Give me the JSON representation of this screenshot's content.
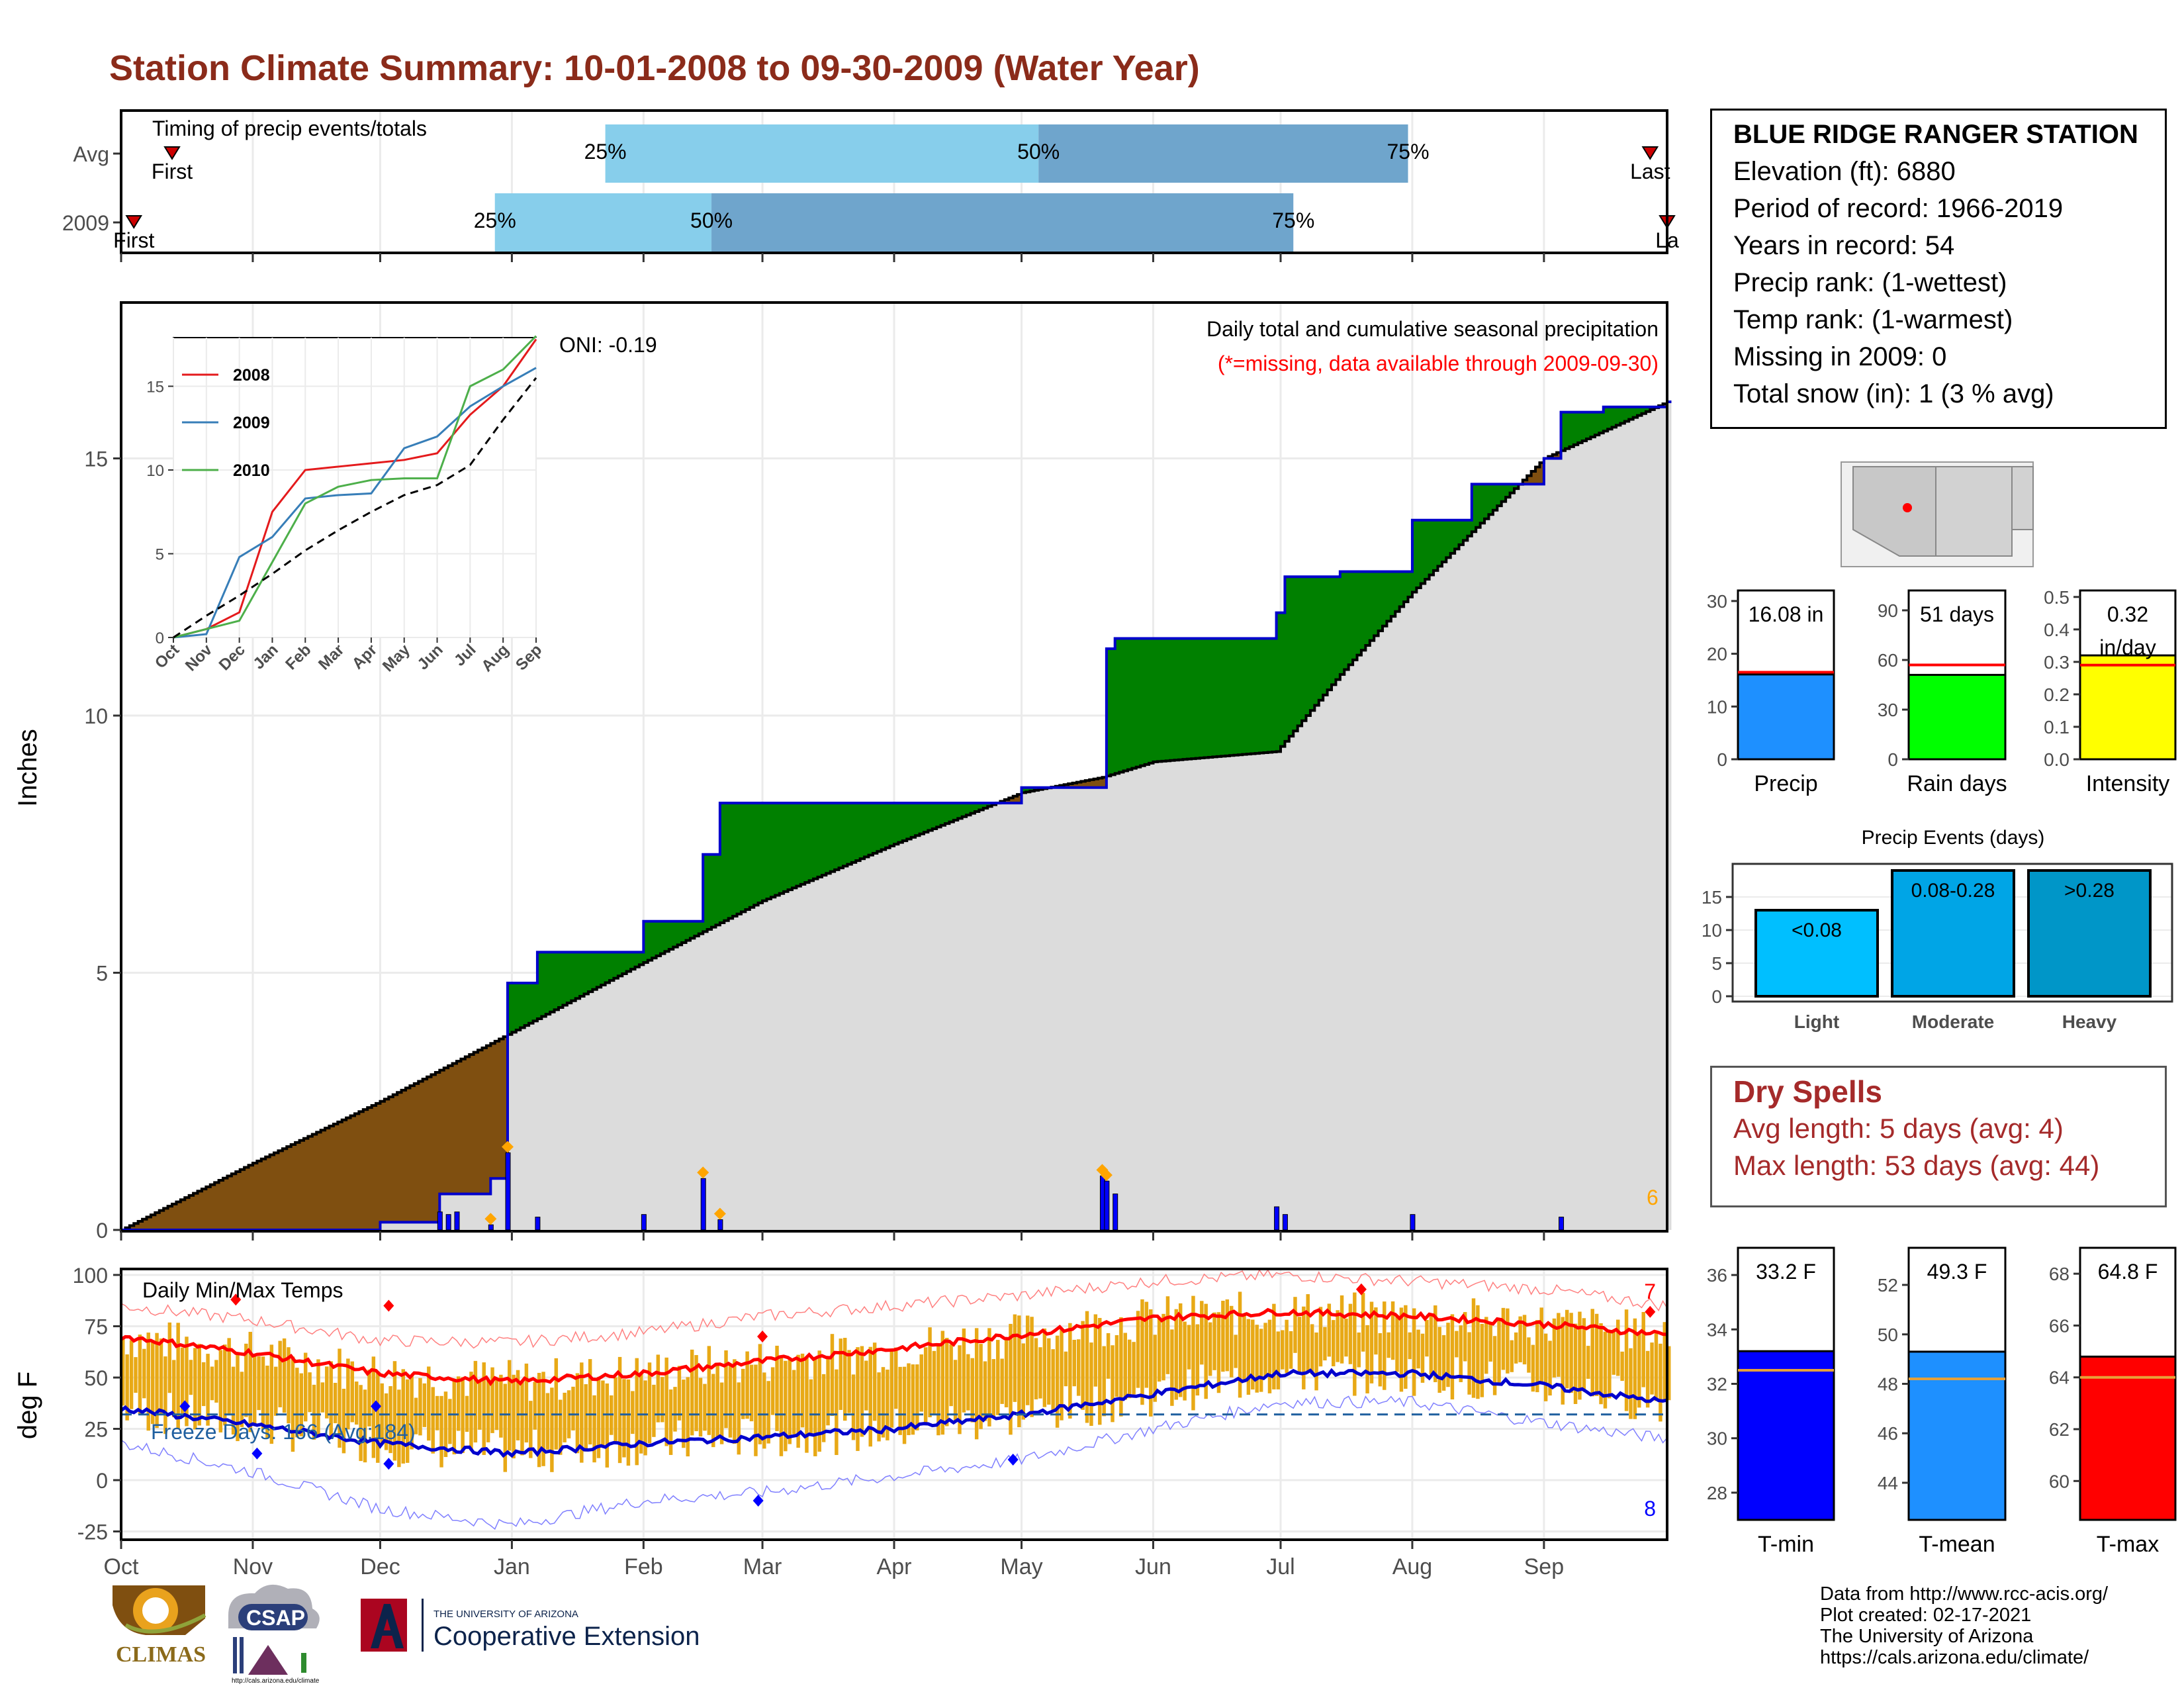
{
  "title": "Station Climate Summary: 10-01-2008 to 09-30-2009 (Water Year)",
  "station": {
    "name": "BLUE RIDGE RANGER STATION",
    "lines": [
      "Elevation (ft): 6880",
      "Period of record: 1966-2019",
      "Years in record: 54",
      "Precip rank:  (1-wettest)",
      "Temp rank:  (1-warmest)",
      "Missing in 2009: 0",
      "Total snow (in): 1 (3 % avg)"
    ]
  },
  "timing": {
    "label": "Timing of precip events/totals",
    "rows": [
      "Avg",
      "2009"
    ],
    "first_label": "First",
    "last_label": "Last",
    "last_label_clipped": "La",
    "avg_percentiles": [
      "25%",
      "50%",
      "75%"
    ],
    "y2009_percentiles": [
      "25%",
      "50%",
      "75%"
    ]
  },
  "precip_panel": {
    "ylabel": "Inches",
    "yticks": [
      "0",
      "5",
      "10",
      "15"
    ],
    "note1": "Daily total and cumulative seasonal precipitation",
    "note2": "(*=missing, data available through 2009-09-30)",
    "oni": "ONI: -0.19",
    "extreme_count": "6",
    "inset": {
      "legend": [
        "2008",
        "2009",
        "2010"
      ],
      "yticks": [
        "0",
        "5",
        "10",
        "15"
      ],
      "xticks": [
        "Oct",
        "Nov",
        "Dec",
        "Jan",
        "Feb",
        "Mar",
        "Apr",
        "May",
        "Jun",
        "Jul",
        "Aug",
        "Sep"
      ]
    }
  },
  "temp_panel": {
    "ylabel": "deg F",
    "label": "Daily Min/Max Temps",
    "freeze": "Freeze Days: 166 (Avg:184)",
    "yticks": [
      "-25",
      "0",
      "25",
      "50",
      "75",
      "100"
    ],
    "max_count": "7",
    "min_count": "8"
  },
  "months": [
    "Oct",
    "Nov",
    "Dec",
    "Jan",
    "Feb",
    "Mar",
    "Apr",
    "May",
    "Jun",
    "Jul",
    "Aug",
    "Sep"
  ],
  "mini_precip": {
    "precip": {
      "label": "Precip",
      "value_text": "16.08 in",
      "yticks": [
        "0",
        "10",
        "20",
        "30"
      ]
    },
    "raindays": {
      "label": "Rain days",
      "value_text": "51 days",
      "yticks": [
        "0",
        "30",
        "60",
        "90"
      ]
    },
    "intensity": {
      "label": "Intensity",
      "value_text_1": "0.32",
      "value_text_2": "in/day",
      "yticks": [
        "0.0",
        "0.1",
        "0.2",
        "0.3",
        "0.4",
        "0.5"
      ]
    }
  },
  "events": {
    "title": "Precip Events (days)",
    "yticks": [
      "0",
      "5",
      "10",
      "15"
    ],
    "cats": [
      "Light",
      "Moderate",
      "Heavy"
    ],
    "bar_labels": [
      "<0.08",
      "0.08-0.28",
      ">0.28"
    ]
  },
  "dry_spells": {
    "title": "Dry Spells",
    "avg": "Avg length: 5 days (avg: 4)",
    "max": "Max length: 53 days (avg: 44)"
  },
  "mini_temp": {
    "tmin": {
      "label": "T-min",
      "value_text": "33.2 F",
      "yticks": [
        "28",
        "30",
        "32",
        "34",
        "36"
      ]
    },
    "tmean": {
      "label": "T-mean",
      "value_text": "49.3 F",
      "yticks": [
        "44",
        "46",
        "48",
        "50",
        "52"
      ]
    },
    "tmax": {
      "label": "T-max",
      "value_text": "64.8 F",
      "yticks": [
        "60",
        "62",
        "64",
        "66",
        "68"
      ]
    }
  },
  "credits": [
    "Data from http://www.rcc-acis.org/",
    "Plot created: 02-17-2021",
    "The University of Arizona",
    "https://cals.arizona.edu/climate/"
  ],
  "logos": {
    "climas": "CLIMAS",
    "csap": "CSAP",
    "csap_url": "http://cals.arizona.edu/climate",
    "ua_small": "THE UNIVERSITY OF ARIZONA",
    "ua_big": "Cooperative Extension"
  },
  "colors": {
    "title": "#8b2b1a",
    "surplus": "#008000",
    "deficit": "#7f4f10",
    "cum_obs": "#0000cc",
    "normal_fill": "#dcdcdc",
    "daily_bar": "#0000ff",
    "temp_range": "#e8a916",
    "tmax_line": "#ff0000",
    "tmin_line": "#0000cc",
    "timing_light": "#87ceeb",
    "timing_dark": "#6fa5cc",
    "precip_bar": "#1e90ff",
    "raindays_bar": "#00ff00",
    "intensity_bar": "#ffff00",
    "light_bar": "#00bfff",
    "moderate_bar": "#00a5e6",
    "heavy_bar": "#0096c8",
    "tmin_bar": "#0000ff",
    "tmean_bar": "#1e90ff",
    "tmax_bar": "#ff0000"
  },
  "chart_data": [
    {
      "type": "bar",
      "title": "Timing of precip events/totals",
      "categories": [
        "Avg",
        "2009"
      ],
      "series": [
        {
          "name": "25%",
          "values": [
            "2009-01-23",
            "2008-12-28"
          ]
        },
        {
          "name": "50%",
          "values": [
            "2009-05-05",
            "2009-02-17"
          ]
        },
        {
          "name": "75%",
          "values": [
            "2009-07-31",
            "2009-07-04"
          ]
        },
        {
          "name": "First",
          "values": [
            "2008-10-13",
            "2008-10-04"
          ]
        },
        {
          "name": "Last",
          "values": [
            "2009-09-26",
            "2009-09-30"
          ]
        }
      ]
    },
    {
      "type": "area",
      "title": "Daily total and cumulative seasonal precipitation",
      "ylabel": "Inches",
      "ylim": [
        0,
        18
      ],
      "x_range": [
        "2008-10-01",
        "2009-09-30"
      ],
      "series": [
        {
          "name": "observed cumulative",
          "x": [
            "2008-10-01",
            "2008-12-01",
            "2008-12-15",
            "2008-12-27",
            "2008-12-31",
            "2009-01-07",
            "2009-02-01",
            "2009-02-15",
            "2009-02-19",
            "2009-03-01",
            "2009-04-01",
            "2009-05-01",
            "2009-05-20",
            "2009-05-21",
            "2009-05-23",
            "2009-06-15",
            "2009-06-30",
            "2009-07-02",
            "2009-07-15",
            "2009-08-01",
            "2009-08-15",
            "2009-09-01",
            "2009-09-05",
            "2009-09-15",
            "2009-09-30"
          ],
          "values": [
            0.0,
            0.15,
            0.7,
            1.0,
            4.8,
            5.4,
            6.0,
            7.3,
            8.3,
            8.3,
            8.3,
            8.6,
            8.6,
            11.3,
            11.5,
            11.5,
            12.0,
            12.7,
            12.8,
            13.8,
            14.5,
            15.0,
            15.9,
            16.0,
            16.1
          ]
        },
        {
          "name": "normal cumulative",
          "x": [
            "2008-10-01",
            "2008-11-01",
            "2008-12-01",
            "2008-12-31",
            "2009-02-01",
            "2009-03-01",
            "2009-04-01",
            "2009-05-01",
            "2009-05-20",
            "2009-06-01",
            "2009-06-30",
            "2009-07-15",
            "2009-08-01",
            "2009-09-01",
            "2009-09-30"
          ],
          "values": [
            0.0,
            1.3,
            2.5,
            3.8,
            5.2,
            6.4,
            7.5,
            8.5,
            8.8,
            9.1,
            9.3,
            10.8,
            12.4,
            15.0,
            16.1
          ]
        }
      ]
    },
    {
      "type": "bar",
      "title": "Daily precipitation",
      "ylabel": "Inches",
      "x": [
        "2008-12-15",
        "2008-12-17",
        "2008-12-19",
        "2008-12-27",
        "2008-12-31",
        "2009-01-07",
        "2009-02-01",
        "2009-02-15",
        "2009-02-19",
        "2009-05-20",
        "2009-05-21",
        "2009-05-23",
        "2009-06-30",
        "2009-07-02",
        "2009-08-01",
        "2009-09-05"
      ],
      "values": [
        0.35,
        0.3,
        0.35,
        0.1,
        1.5,
        0.25,
        0.3,
        1.0,
        0.2,
        1.05,
        0.95,
        0.7,
        0.45,
        0.3,
        0.3,
        0.25
      ]
    },
    {
      "type": "line",
      "title": "Daily Min/Max Temps",
      "ylabel": "deg F",
      "ylim": [
        -28,
        103
      ],
      "x": [
        "2008-10-01",
        "2008-11-01",
        "2008-12-01",
        "2009-01-01",
        "2009-02-01",
        "2009-03-01",
        "2009-04-01",
        "2009-05-01",
        "2009-06-01",
        "2009-07-01",
        "2009-08-01",
        "2009-09-01",
        "2009-09-30"
      ],
      "series": [
        {
          "name": "normal max",
          "values": [
            70,
            62,
            52,
            48,
            52,
            58,
            64,
            71,
            79,
            82,
            80,
            76,
            71
          ]
        },
        {
          "name": "normal min",
          "values": [
            35,
            27,
            18,
            13,
            18,
            21,
            25,
            32,
            42,
            52,
            52,
            46,
            38
          ]
        },
        {
          "name": "record max",
          "values": [
            85,
            78,
            68,
            67,
            72,
            80,
            85,
            90,
            97,
            100,
            97,
            93,
            85
          ]
        },
        {
          "name": "record min",
          "values": [
            18,
            4,
            -14,
            -22,
            -10,
            -6,
            2,
            10,
            25,
            38,
            38,
            28,
            20
          ]
        }
      ]
    },
    {
      "type": "line",
      "title": "Inset: cumulative precipitation by year",
      "x": [
        "Oct",
        "Nov",
        "Dec",
        "Jan",
        "Feb",
        "Mar",
        "Apr",
        "May",
        "Jun",
        "Jul",
        "Aug",
        "Sep"
      ],
      "series": [
        {
          "name": "2008",
          "values": [
            0.0,
            0.5,
            1.5,
            7.5,
            10.0,
            10.2,
            10.4,
            10.6,
            11.0,
            13.3,
            15.0,
            17.8
          ]
        },
        {
          "name": "2009",
          "values": [
            0.0,
            0.2,
            4.8,
            6.0,
            8.3,
            8.5,
            8.6,
            11.3,
            12.0,
            13.8,
            15.0,
            16.1
          ]
        },
        {
          "name": "2010",
          "values": [
            0.0,
            0.5,
            1.0,
            4.5,
            8.0,
            9.0,
            9.4,
            9.5,
            9.5,
            15.0,
            16.0,
            18.0
          ]
        },
        {
          "name": "average",
          "values": [
            0.0,
            1.3,
            2.5,
            3.8,
            5.2,
            6.4,
            7.5,
            8.5,
            9.1,
            10.3,
            13.0,
            15.5
          ]
        }
      ]
    },
    {
      "type": "bar",
      "title": "Precip",
      "categories": [
        "Precip"
      ],
      "values": [
        16.08
      ],
      "ylim": [
        0,
        32
      ],
      "reference": 16.5
    },
    {
      "type": "bar",
      "title": "Rain days",
      "categories": [
        "Rain days"
      ],
      "values": [
        51
      ],
      "ylim": [
        0,
        102
      ],
      "reference": 57
    },
    {
      "type": "bar",
      "title": "Intensity",
      "categories": [
        "Intensity"
      ],
      "values": [
        0.32
      ],
      "ylim": [
        0,
        0.52
      ],
      "reference": 0.29
    },
    {
      "type": "bar",
      "title": "Precip Events (days)",
      "categories": [
        "Light",
        "Moderate",
        "Heavy"
      ],
      "values": [
        13,
        19,
        19
      ],
      "ylim": [
        0,
        20
      ]
    },
    {
      "type": "bar",
      "title": "T-min",
      "categories": [
        "T-min"
      ],
      "values": [
        33.2
      ],
      "ylim": [
        27,
        37
      ],
      "reference": 32.5
    },
    {
      "type": "bar",
      "title": "T-mean",
      "categories": [
        "T-mean"
      ],
      "values": [
        49.3
      ],
      "ylim": [
        42.5,
        53.5
      ],
      "reference": 48.2
    },
    {
      "type": "bar",
      "title": "T-max",
      "categories": [
        "T-max"
      ],
      "values": [
        64.8
      ],
      "ylim": [
        58.5,
        69
      ],
      "reference": 64
    }
  ]
}
